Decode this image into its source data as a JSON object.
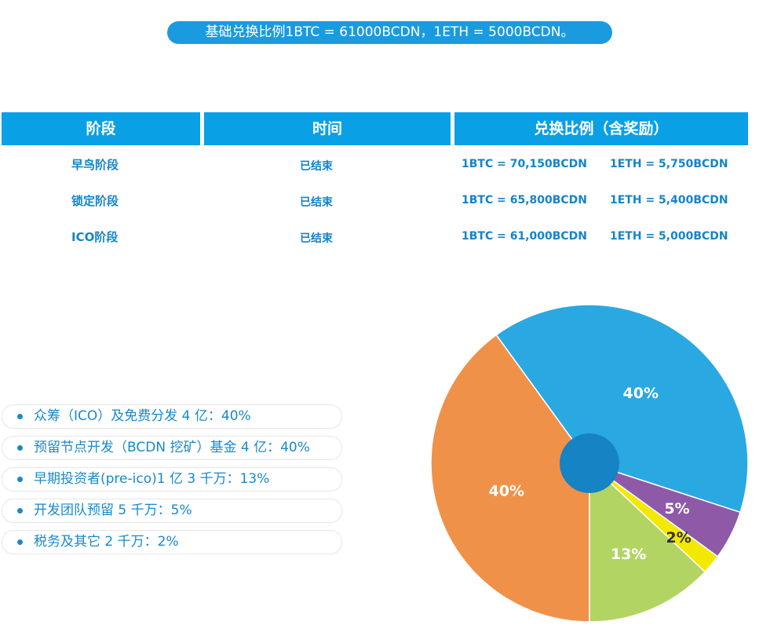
{
  "banner": "基础兑换比例1BTC = 61000BCDN，1ETH = 5000BCDN。",
  "table": {
    "headers": [
      "阶段",
      "时间",
      "兑换比例（含奖励）"
    ],
    "rows": [
      {
        "stage": "早鸟阶段",
        "time": "已结束",
        "btc": "1BTC = 70,150BCDN",
        "eth": "1ETH = 5,750BCDN"
      },
      {
        "stage": "锁定阶段",
        "time": "已结束",
        "btc": "1BTC = 65,800BCDN",
        "eth": "1ETH = 5,400BCDN"
      },
      {
        "stage": "ICO阶段",
        "time": "已结束",
        "btc": "1BTC = 61,000BCDN",
        "eth": "1ETH = 5,000BCDN"
      }
    ]
  },
  "legend": [
    "众筹（ICO）及免费分发 4 亿：40%",
    "预留节点开发（BCDN 挖矿）基金 4 亿：40%",
    "早期投资者(pre-ico)1 亿 3 千万：13%",
    "开发团队预留 5 千万：5%",
    "税务及其它 2 千万：2%"
  ],
  "chart_data": {
    "type": "pie",
    "title": "",
    "slices": [
      {
        "name": "预留节点开发（BCDN 挖矿）基金",
        "value": 40,
        "label": "40%",
        "color": "#2aa8e2"
      },
      {
        "name": "众筹（ICO）及免费分发",
        "value": 40,
        "label": "40%",
        "color": "#f0914a"
      },
      {
        "name": "早期投资者(pre-ico)",
        "value": 13,
        "label": "13%",
        "color": "#b2d463"
      },
      {
        "name": "税务及其它",
        "value": 2,
        "label": "2%",
        "color": "#f3e800"
      },
      {
        "name": "开发团队预留",
        "value": 5,
        "label": "5%",
        "color": "#8e5aa7"
      }
    ],
    "center_color": "#1583c4"
  }
}
